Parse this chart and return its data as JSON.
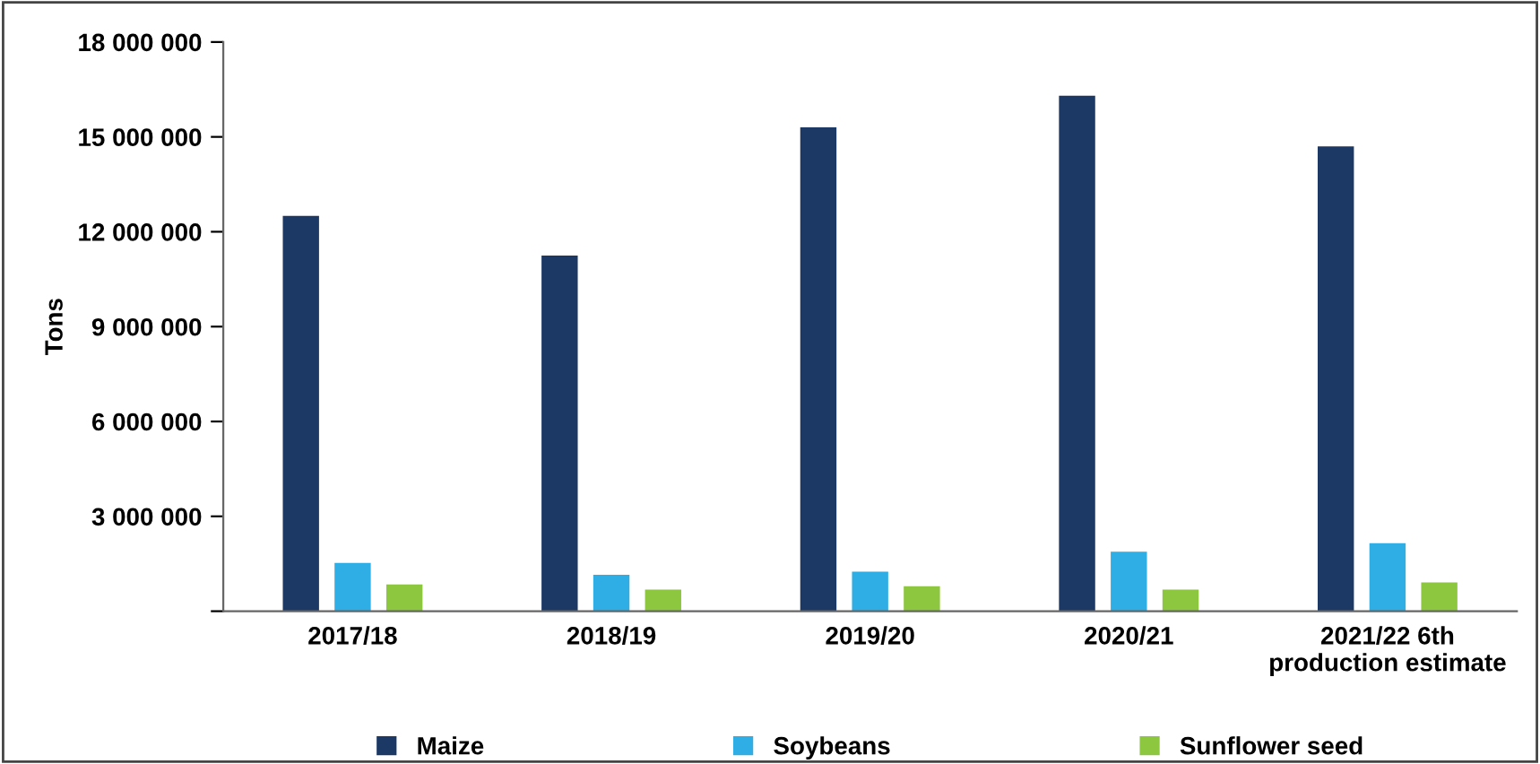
{
  "chart_data": {
    "type": "bar",
    "ylabel": "Tons",
    "categories": [
      "2017/18",
      "2018/19",
      "2019/20",
      "2020/21",
      "2021/22 6th production estimate"
    ],
    "series": [
      {
        "name": "Maize",
        "color": "#1c3865",
        "values": [
          12500000,
          11250000,
          15300000,
          16300000,
          14700000
        ]
      },
      {
        "name": "Soybeans",
        "color": "#2eaee4",
        "values": [
          1530000,
          1150000,
          1250000,
          1880000,
          2150000
        ]
      },
      {
        "name": "Sunflower seed",
        "color": "#8dc63f",
        "values": [
          850000,
          680000,
          790000,
          680000,
          910000
        ]
      }
    ],
    "ylim": [
      0,
      18000000
    ],
    "yticks": [
      {
        "value": 0,
        "label": null
      },
      {
        "value": 3000000,
        "label": "3 000 000"
      },
      {
        "value": 6000000,
        "label": "6 000 000"
      },
      {
        "value": 9000000,
        "label": "9 000 000"
      },
      {
        "value": 12000000,
        "label": "12 000 000"
      },
      {
        "value": 15000000,
        "label": "15 000 000"
      },
      {
        "value": 18000000,
        "label": "18 000 000"
      }
    ],
    "grid": false,
    "legend": "bottom"
  }
}
